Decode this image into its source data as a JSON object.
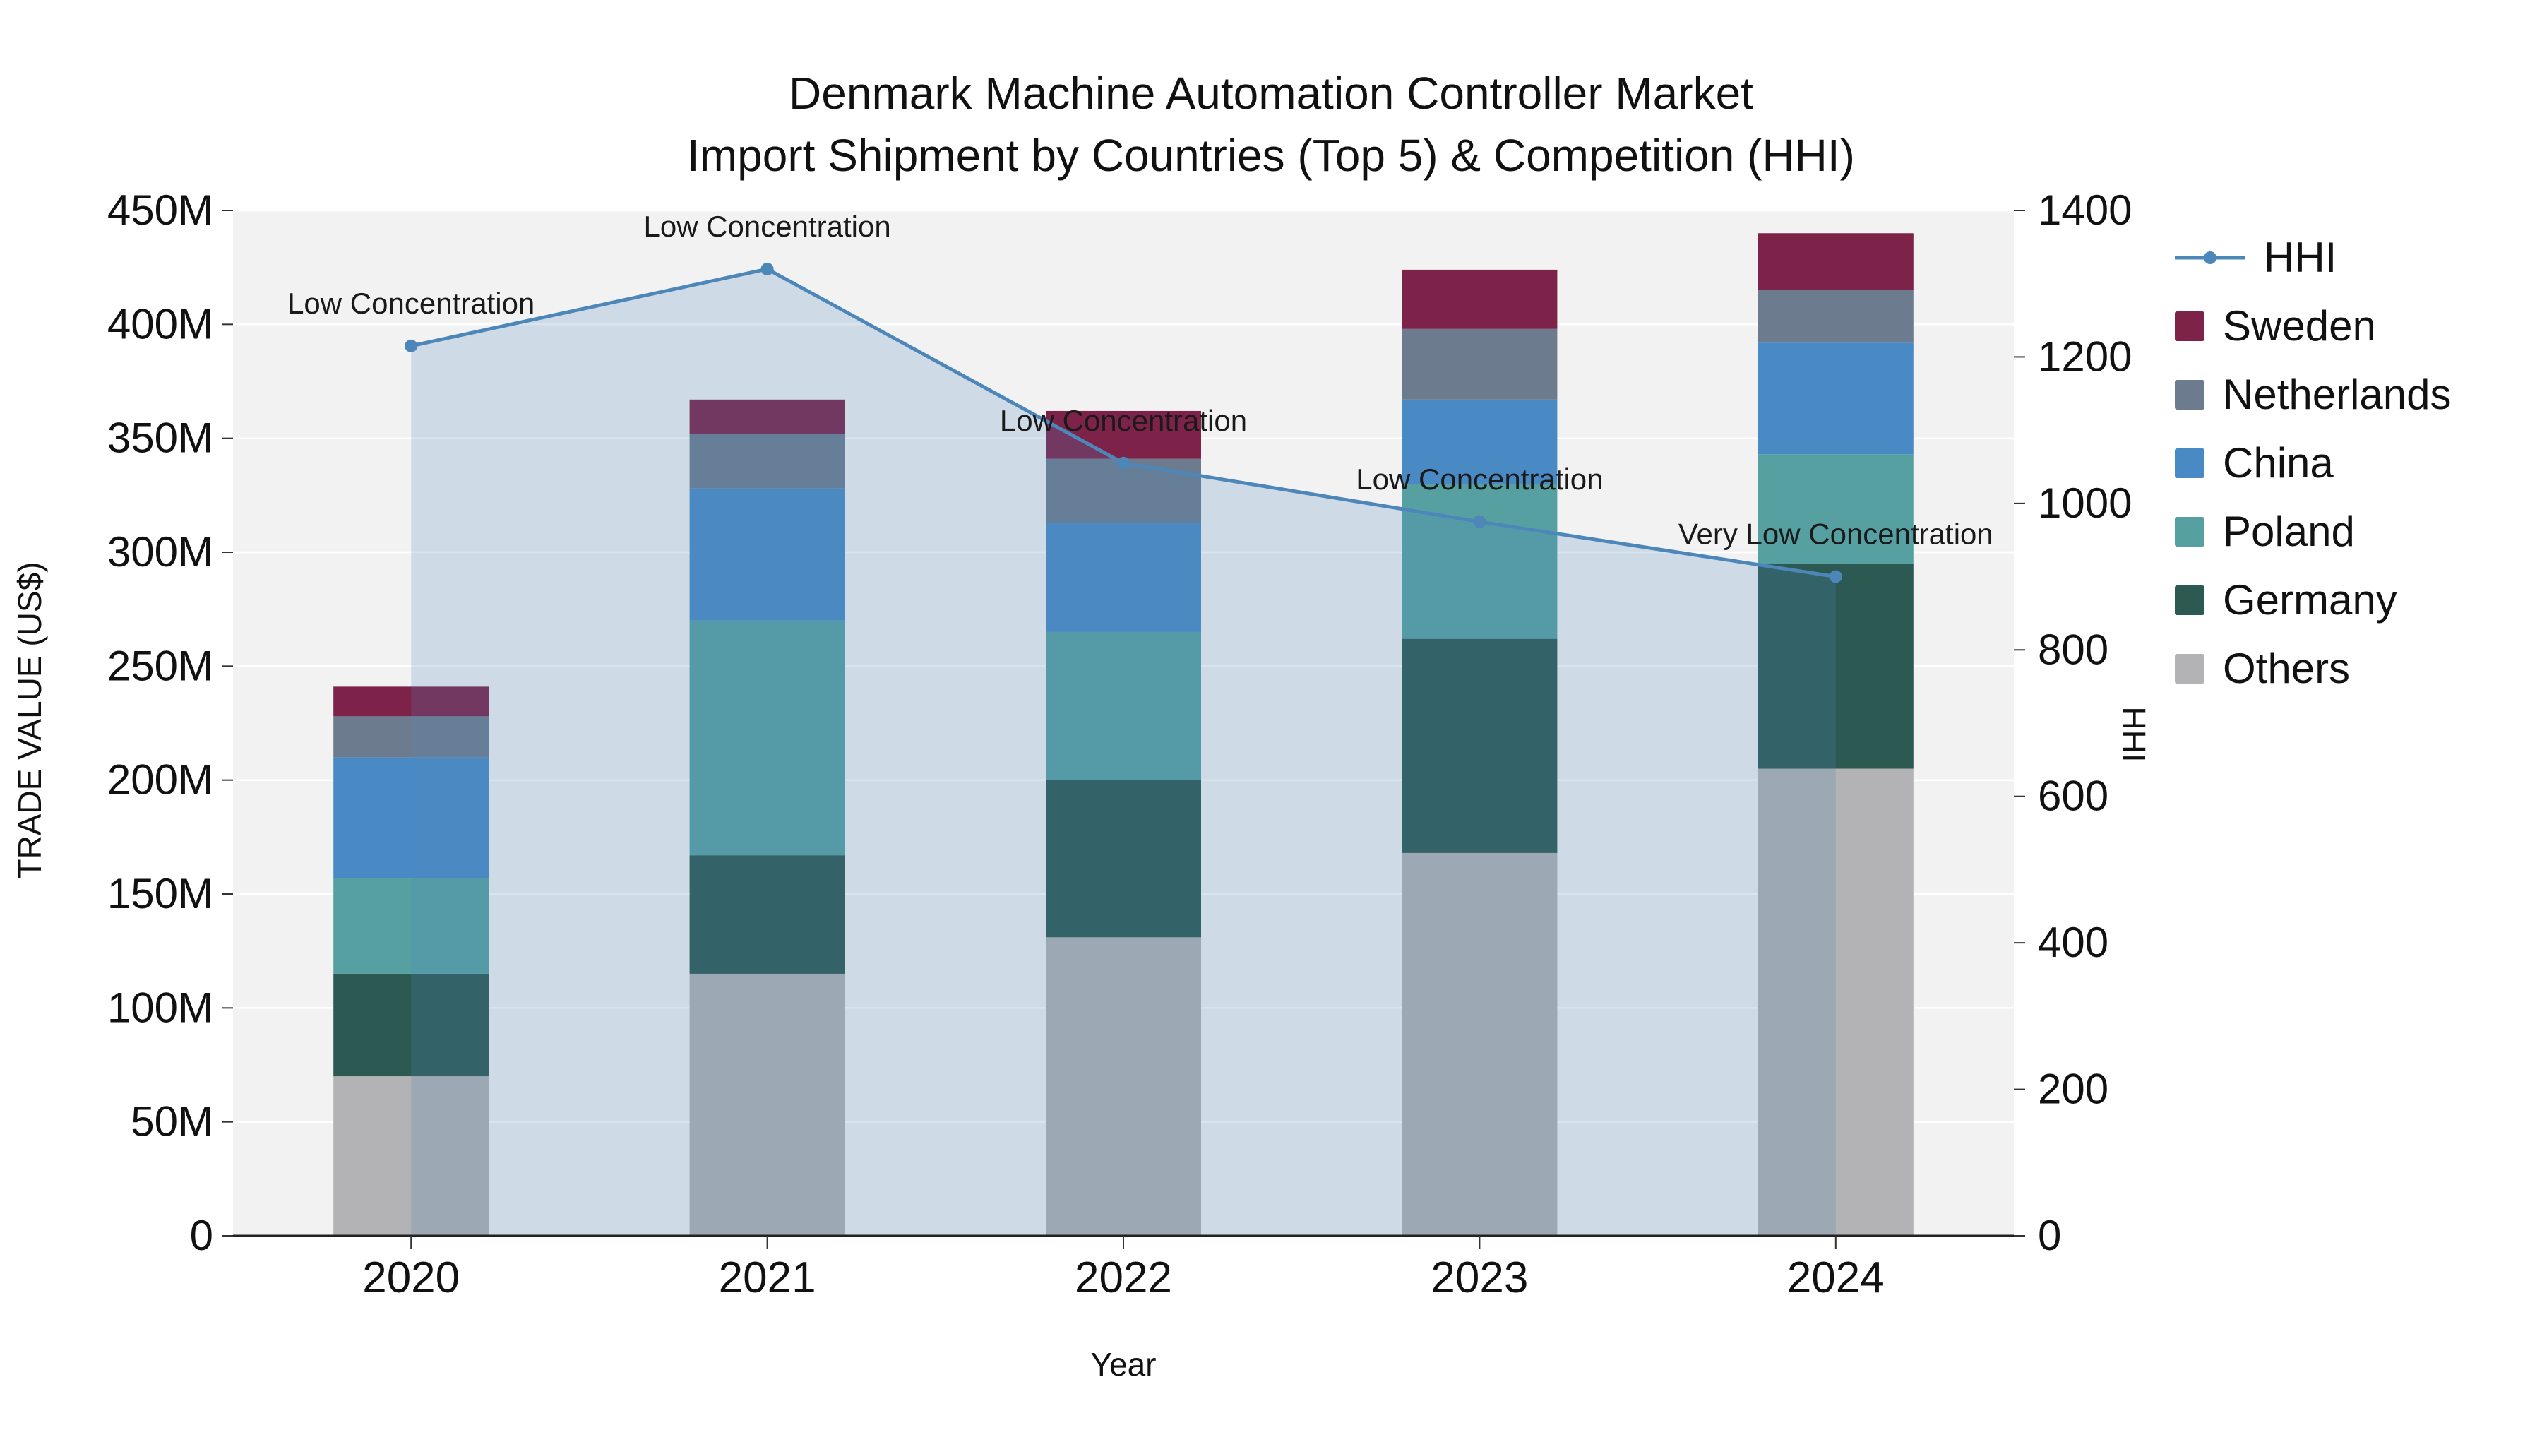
{
  "title": {
    "line1": "Denmark Machine Automation Controller Market",
    "line2": "Import Shipment by Countries (Top 5) & Competition (HHI)"
  },
  "axes": {
    "y_left_label": "TRADE VALUE (US$)",
    "y_right_label": "HHI",
    "x_label": "Year",
    "y_left_ticks": [
      {
        "value": 0,
        "label": "0"
      },
      {
        "value": 50,
        "label": "50M"
      },
      {
        "value": 100,
        "label": "100M"
      },
      {
        "value": 150,
        "label": "150M"
      },
      {
        "value": 200,
        "label": "200M"
      },
      {
        "value": 250,
        "label": "250M"
      },
      {
        "value": 300,
        "label": "300M"
      },
      {
        "value": 350,
        "label": "350M"
      },
      {
        "value": 400,
        "label": "400M"
      },
      {
        "value": 450,
        "label": "450M"
      }
    ],
    "y_right_ticks": [
      {
        "value": 0,
        "label": "0"
      },
      {
        "value": 200,
        "label": "200"
      },
      {
        "value": 400,
        "label": "400"
      },
      {
        "value": 600,
        "label": "600"
      },
      {
        "value": 800,
        "label": "800"
      },
      {
        "value": 1000,
        "label": "1000"
      },
      {
        "value": 1200,
        "label": "1200"
      },
      {
        "value": 1400,
        "label": "1400"
      }
    ]
  },
  "chart_data": {
    "type": "bar",
    "stacked": true,
    "unit": "million US$",
    "categories": [
      "2020",
      "2021",
      "2022",
      "2023",
      "2024"
    ],
    "ylim_left": [
      0,
      450
    ],
    "ylim_right": [
      0,
      1400
    ],
    "grid": true,
    "plot_bg": "#f2f2f3",
    "grid_color": "#ffffff",
    "series": [
      {
        "name": "Others",
        "color": "#b3b2b4",
        "values": [
          70,
          115,
          131,
          168,
          205
        ]
      },
      {
        "name": "Germany",
        "color": "#2c5951",
        "values": [
          45,
          52,
          69,
          94,
          90
        ]
      },
      {
        "name": "Poland",
        "color": "#56a0a2",
        "values": [
          42,
          103,
          65,
          68,
          48
        ]
      },
      {
        "name": "China",
        "color": "#4a8ac4",
        "values": [
          53,
          58,
          48,
          37,
          49
        ]
      },
      {
        "name": "Netherlands",
        "color": "#6d7b8e",
        "values": [
          18,
          24,
          28,
          31,
          23
        ]
      },
      {
        "name": "Sweden",
        "color": "#7d2248",
        "values": [
          13,
          15,
          21,
          26,
          25
        ]
      }
    ],
    "line_series": {
      "name": "HHI",
      "axis": "right",
      "color": "#4d87b9",
      "area_fill": "rgba(77,135,185,0.22)",
      "values": [
        1215,
        1320,
        1055,
        975,
        900
      ]
    },
    "annotations": [
      {
        "category": "2020",
        "text": "Low Concentration"
      },
      {
        "category": "2021",
        "text": "Low Concentration"
      },
      {
        "category": "2022",
        "text": "Low Concentration"
      },
      {
        "category": "2023",
        "text": "Low Concentration"
      },
      {
        "category": "2024",
        "text": "Very Low Concentration"
      }
    ]
  },
  "legend": {
    "items": [
      {
        "label": "HHI",
        "type": "line",
        "color": "#4d87b9"
      },
      {
        "label": "Sweden",
        "type": "swatch",
        "color": "#7d2248"
      },
      {
        "label": "Netherlands",
        "type": "swatch",
        "color": "#6d7b8e"
      },
      {
        "label": "China",
        "type": "swatch",
        "color": "#4a8ac4"
      },
      {
        "label": "Poland",
        "type": "swatch",
        "color": "#56a0a2"
      },
      {
        "label": "Germany",
        "type": "swatch",
        "color": "#2c5951"
      },
      {
        "label": "Others",
        "type": "swatch",
        "color": "#b3b2b4"
      }
    ]
  }
}
